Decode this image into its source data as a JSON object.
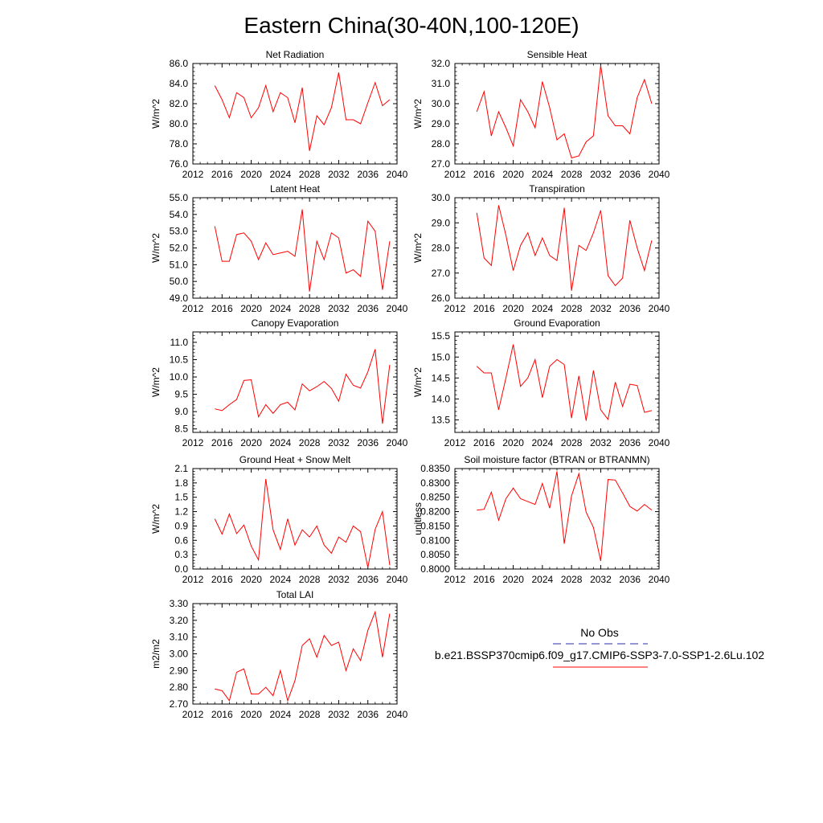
{
  "figure": {
    "title": "Eastern China(30-40N,100-120E)",
    "legend": {
      "obs_label": "No Obs",
      "obs_color": "#2b2bb0",
      "model_label": "b.e21.BSSP370cmip6.f09_g17.CMIP6-SSP3-7.0-SSP1-2.6Lu.102",
      "model_color": "#ff0000"
    }
  },
  "chart_data": [
    {
      "type": "line",
      "title": "Net Radiation",
      "ylabel": "W/m^2",
      "xlim": [
        2012,
        2040
      ],
      "ylim": [
        76.0,
        86.0
      ],
      "xticks": [
        2012,
        2016,
        2020,
        2024,
        2028,
        2032,
        2036,
        2040
      ],
      "yticks": [
        76.0,
        78.0,
        80.0,
        82.0,
        84.0,
        86.0
      ],
      "ytick_labels": [
        "76.0",
        "78.0",
        "80.0",
        "82.0",
        "84.0",
        "86.0"
      ],
      "series": [
        {
          "color": "#ff0000",
          "x": [
            2015,
            2016,
            2017,
            2018,
            2019,
            2020,
            2021,
            2022,
            2023,
            2024,
            2025,
            2026,
            2027,
            2028,
            2029,
            2030,
            2031,
            2032,
            2033,
            2034,
            2035,
            2036,
            2037,
            2038,
            2039
          ],
          "values": [
            83.8,
            82.4,
            80.6,
            83.1,
            82.6,
            80.6,
            81.6,
            83.8,
            81.2,
            83.1,
            82.6,
            80.1,
            83.6,
            77.3,
            80.8,
            79.9,
            81.6,
            85.1,
            80.4,
            80.4,
            80.0,
            82.1,
            84.1,
            81.8,
            82.4
          ]
        }
      ]
    },
    {
      "type": "line",
      "title": "Sensible Heat",
      "ylabel": "W/m^2",
      "xlim": [
        2012,
        2040
      ],
      "ylim": [
        27.0,
        32.0
      ],
      "xticks": [
        2012,
        2016,
        2020,
        2024,
        2028,
        2032,
        2036,
        2040
      ],
      "yticks": [
        27.0,
        28.0,
        29.0,
        30.0,
        31.0,
        32.0
      ],
      "ytick_labels": [
        "27.0",
        "28.0",
        "29.0",
        "30.0",
        "31.0",
        "32.0"
      ],
      "series": [
        {
          "color": "#ff0000",
          "x": [
            2015,
            2016,
            2017,
            2018,
            2019,
            2020,
            2021,
            2022,
            2023,
            2024,
            2025,
            2026,
            2027,
            2028,
            2029,
            2030,
            2031,
            2032,
            2033,
            2034,
            2035,
            2036,
            2037,
            2038,
            2039
          ],
          "values": [
            29.6,
            30.6,
            28.4,
            29.6,
            28.8,
            27.9,
            30.2,
            29.6,
            28.8,
            31.1,
            29.8,
            28.2,
            28.5,
            27.3,
            27.4,
            28.1,
            28.4,
            31.9,
            29.4,
            28.9,
            28.9,
            28.5,
            30.3,
            31.2,
            30.0
          ]
        }
      ]
    },
    {
      "type": "line",
      "title": "Latent Heat",
      "ylabel": "W/m^2",
      "xlim": [
        2012,
        2040
      ],
      "ylim": [
        49.0,
        55.0
      ],
      "xticks": [
        2012,
        2016,
        2020,
        2024,
        2028,
        2032,
        2036,
        2040
      ],
      "yticks": [
        49.0,
        50.0,
        51.0,
        52.0,
        53.0,
        54.0,
        55.0
      ],
      "ytick_labels": [
        "49.0",
        "50.0",
        "51.0",
        "52.0",
        "53.0",
        "54.0",
        "55.0"
      ],
      "series": [
        {
          "color": "#ff0000",
          "x": [
            2015,
            2016,
            2017,
            2018,
            2019,
            2020,
            2021,
            2022,
            2023,
            2024,
            2025,
            2026,
            2027,
            2028,
            2029,
            2030,
            2031,
            2032,
            2033,
            2034,
            2035,
            2036,
            2037,
            2038,
            2039
          ],
          "values": [
            53.3,
            51.2,
            51.2,
            52.8,
            52.9,
            52.4,
            51.3,
            52.3,
            51.6,
            51.7,
            51.8,
            51.5,
            54.3,
            49.4,
            52.4,
            51.3,
            52.9,
            52.6,
            50.5,
            50.7,
            50.3,
            53.6,
            53.0,
            49.5,
            52.4
          ]
        }
      ]
    },
    {
      "type": "line",
      "title": "Transpiration",
      "ylabel": "W/m^2",
      "xlim": [
        2012,
        2040
      ],
      "ylim": [
        26.0,
        30.0
      ],
      "xticks": [
        2012,
        2016,
        2020,
        2024,
        2028,
        2032,
        2036,
        2040
      ],
      "yticks": [
        26.0,
        27.0,
        28.0,
        29.0,
        30.0
      ],
      "ytick_labels": [
        "26.0",
        "27.0",
        "28.0",
        "29.0",
        "30.0"
      ],
      "series": [
        {
          "color": "#ff0000",
          "x": [
            2015,
            2016,
            2017,
            2018,
            2019,
            2020,
            2021,
            2022,
            2023,
            2024,
            2025,
            2026,
            2027,
            2028,
            2029,
            2030,
            2031,
            2032,
            2033,
            2034,
            2035,
            2036,
            2037,
            2038,
            2039
          ],
          "values": [
            29.4,
            27.6,
            27.3,
            29.7,
            28.5,
            27.1,
            28.1,
            28.6,
            27.7,
            28.4,
            27.7,
            27.5,
            29.6,
            26.3,
            28.1,
            27.9,
            28.6,
            29.5,
            26.9,
            26.5,
            26.8,
            29.1,
            28.0,
            27.1,
            28.3
          ]
        }
      ]
    },
    {
      "type": "line",
      "title": "Canopy Evaporation",
      "ylabel": "W/m^2",
      "xlim": [
        2012,
        2040
      ],
      "ylim": [
        8.4,
        11.3
      ],
      "xticks": [
        2012,
        2016,
        2020,
        2024,
        2028,
        2032,
        2036,
        2040
      ],
      "yticks": [
        8.5,
        9.0,
        9.5,
        10.0,
        10.5,
        11.0
      ],
      "ytick_labels": [
        "8.5",
        "9.0",
        "9.5",
        "10.0",
        "10.5",
        "11.0"
      ],
      "series": [
        {
          "color": "#ff0000",
          "x": [
            2015,
            2016,
            2017,
            2018,
            2019,
            2020,
            2021,
            2022,
            2023,
            2024,
            2025,
            2026,
            2027,
            2028,
            2029,
            2030,
            2031,
            2032,
            2033,
            2034,
            2035,
            2036,
            2037,
            2038,
            2039
          ],
          "values": [
            9.08,
            9.03,
            9.2,
            9.35,
            9.9,
            9.92,
            8.85,
            9.2,
            8.95,
            9.2,
            9.27,
            9.05,
            9.8,
            9.6,
            9.72,
            9.87,
            9.67,
            9.3,
            10.08,
            9.76,
            9.68,
            10.15,
            10.8,
            8.65,
            10.35
          ]
        }
      ]
    },
    {
      "type": "line",
      "title": "Ground Evaporation",
      "ylabel": "W/m^2",
      "xlim": [
        2012,
        2040
      ],
      "ylim": [
        13.2,
        15.6
      ],
      "xticks": [
        2012,
        2016,
        2020,
        2024,
        2028,
        2032,
        2036,
        2040
      ],
      "yticks": [
        13.5,
        14.0,
        14.5,
        15.0,
        15.5
      ],
      "ytick_labels": [
        "13.5",
        "14.0",
        "14.5",
        "15.0",
        "15.5"
      ],
      "series": [
        {
          "color": "#ff0000",
          "x": [
            2015,
            2016,
            2017,
            2018,
            2019,
            2020,
            2021,
            2022,
            2023,
            2024,
            2025,
            2026,
            2027,
            2028,
            2029,
            2030,
            2031,
            2032,
            2033,
            2034,
            2035,
            2036,
            2037,
            2038,
            2039
          ],
          "values": [
            14.78,
            14.62,
            14.62,
            13.74,
            14.5,
            15.3,
            14.3,
            14.5,
            14.94,
            14.03,
            14.78,
            14.94,
            14.82,
            13.54,
            14.55,
            13.48,
            14.68,
            13.74,
            13.51,
            14.4,
            13.82,
            14.35,
            14.32,
            13.68,
            13.72
          ]
        }
      ]
    },
    {
      "type": "line",
      "title": "Ground Heat + Snow Melt",
      "ylabel": "W/m^2",
      "xlim": [
        2012,
        2040
      ],
      "ylim": [
        0.0,
        2.1
      ],
      "xticks": [
        2012,
        2016,
        2020,
        2024,
        2028,
        2032,
        2036,
        2040
      ],
      "yticks": [
        0.0,
        0.3,
        0.6,
        0.9,
        1.2,
        1.5,
        1.8,
        2.1
      ],
      "ytick_labels": [
        "0.0",
        "0.3",
        "0.6",
        "0.9",
        "1.2",
        "1.5",
        "1.8",
        "2.1"
      ],
      "series": [
        {
          "color": "#ff0000",
          "x": [
            2015,
            2016,
            2017,
            2018,
            2019,
            2020,
            2021,
            2022,
            2023,
            2024,
            2025,
            2026,
            2027,
            2028,
            2029,
            2030,
            2031,
            2032,
            2033,
            2034,
            2035,
            2036,
            2037,
            2038,
            2039
          ],
          "values": [
            1.05,
            0.73,
            1.15,
            0.74,
            0.92,
            0.48,
            0.19,
            1.88,
            0.82,
            0.41,
            1.05,
            0.5,
            0.82,
            0.67,
            0.9,
            0.5,
            0.33,
            0.67,
            0.56,
            0.9,
            0.78,
            0.03,
            0.83,
            1.2,
            0.08
          ]
        }
      ]
    },
    {
      "type": "line",
      "title": "Soil moisture factor (BTRAN or BTRANMN)",
      "ylabel": "unitless",
      "xlim": [
        2012,
        2040
      ],
      "ylim": [
        0.8,
        0.835
      ],
      "xticks": [
        2012,
        2016,
        2020,
        2024,
        2028,
        2032,
        2036,
        2040
      ],
      "yticks": [
        0.8,
        0.805,
        0.81,
        0.815,
        0.82,
        0.825,
        0.83,
        0.835
      ],
      "ytick_labels": [
        "0.8000",
        "0.8050",
        "0.8100",
        "0.8150",
        "0.8200",
        "0.8250",
        "0.8300",
        "0.8350"
      ],
      "series": [
        {
          "color": "#ff0000",
          "x": [
            2015,
            2016,
            2017,
            2018,
            2019,
            2020,
            2021,
            2022,
            2023,
            2024,
            2025,
            2026,
            2027,
            2028,
            2029,
            2030,
            2031,
            2032,
            2033,
            2034,
            2035,
            2036,
            2037,
            2038,
            2039
          ],
          "values": [
            0.8205,
            0.8208,
            0.8268,
            0.817,
            0.8245,
            0.8282,
            0.8245,
            0.8235,
            0.8225,
            0.8298,
            0.8212,
            0.834,
            0.8088,
            0.8255,
            0.8332,
            0.8198,
            0.8145,
            0.8028,
            0.8312,
            0.831,
            0.8265,
            0.8218,
            0.8202,
            0.8225,
            0.8205
          ]
        }
      ]
    },
    {
      "type": "line",
      "title": "Total LAI",
      "ylabel": "m2/m2",
      "xlim": [
        2012,
        2040
      ],
      "ylim": [
        2.7,
        3.3
      ],
      "xticks": [
        2012,
        2016,
        2020,
        2024,
        2028,
        2032,
        2036,
        2040
      ],
      "yticks": [
        2.7,
        2.8,
        2.9,
        3.0,
        3.1,
        3.2,
        3.3
      ],
      "ytick_labels": [
        "2.70",
        "2.80",
        "2.90",
        "3.00",
        "3.10",
        "3.20",
        "3.30"
      ],
      "series": [
        {
          "color": "#ff0000",
          "x": [
            2015,
            2016,
            2017,
            2018,
            2019,
            2020,
            2021,
            2022,
            2023,
            2024,
            2025,
            2026,
            2027,
            2028,
            2029,
            2030,
            2031,
            2032,
            2033,
            2034,
            2035,
            2036,
            2037,
            2038,
            2039
          ],
          "values": [
            2.79,
            2.78,
            2.72,
            2.89,
            2.91,
            2.76,
            2.76,
            2.8,
            2.75,
            2.9,
            2.72,
            2.84,
            3.05,
            3.09,
            2.98,
            3.11,
            3.05,
            3.07,
            2.9,
            3.03,
            2.96,
            3.14,
            3.25,
            2.98,
            3.24
          ]
        }
      ]
    }
  ]
}
